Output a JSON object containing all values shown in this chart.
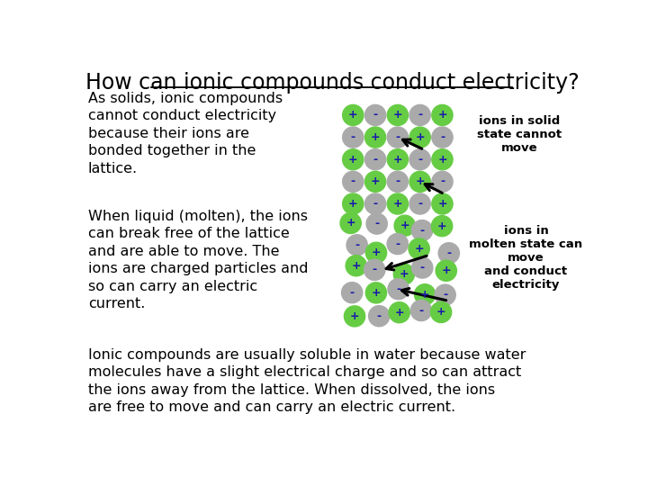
{
  "title": "How can ionic compounds conduct electricity?",
  "title_fontsize": 17,
  "bg_color": "#ffffff",
  "text_color": "#000000",
  "font_family": "Comic Sans MS",
  "solid_label_text": "ions in solid\nstate cannot\nmove",
  "molten_label_text": "ions in\nmolten state can\nmove\nand conduct\nelectricity",
  "paragraph1": "As solids, ionic compounds\ncannot conduct electricity\nbecause their ions are\nbonded together in the\nlattice.",
  "paragraph2": "When liquid (molten), the ions\ncan break free of the lattice\nand are able to move. The\nions are charged particles and\nso can carry an electric\ncurrent.",
  "paragraph3": "Ionic compounds are usually soluble in water because water\nmolecules have a slight electrical charge and so can attract\nthe ions away from the lattice. When dissolved, the ions\nare free to move and can carry an electric current.",
  "green_color": "#66cc44",
  "gray_color": "#aaaaaa",
  "sign_color": "#1a1aaa"
}
